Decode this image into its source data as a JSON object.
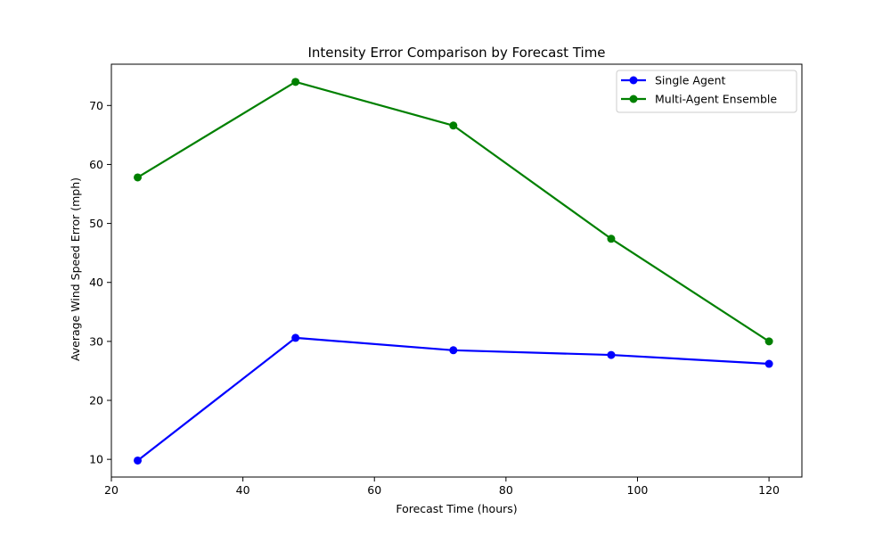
{
  "chart_data": {
    "type": "line",
    "title": "Intensity Error Comparison by Forecast Time",
    "xlabel": "Forecast Time (hours)",
    "ylabel": "Average Wind Speed Error (mph)",
    "x": [
      24,
      48,
      72,
      96,
      120
    ],
    "xlim": [
      20,
      125
    ],
    "ylim": [
      7,
      77
    ],
    "xticks": [
      20,
      40,
      60,
      80,
      100,
      120
    ],
    "yticks": [
      10,
      20,
      30,
      40,
      50,
      60,
      70
    ],
    "grid": false,
    "legend_position": "top-right",
    "series": [
      {
        "name": "Single Agent",
        "color": "#0000ff",
        "marker": "circle",
        "values": [
          9.8,
          30.6,
          28.5,
          27.7,
          26.2
        ]
      },
      {
        "name": "Multi-Agent Ensemble",
        "color": "#008000",
        "marker": "circle",
        "values": [
          57.8,
          74.0,
          66.6,
          47.4,
          30.0
        ]
      }
    ]
  }
}
